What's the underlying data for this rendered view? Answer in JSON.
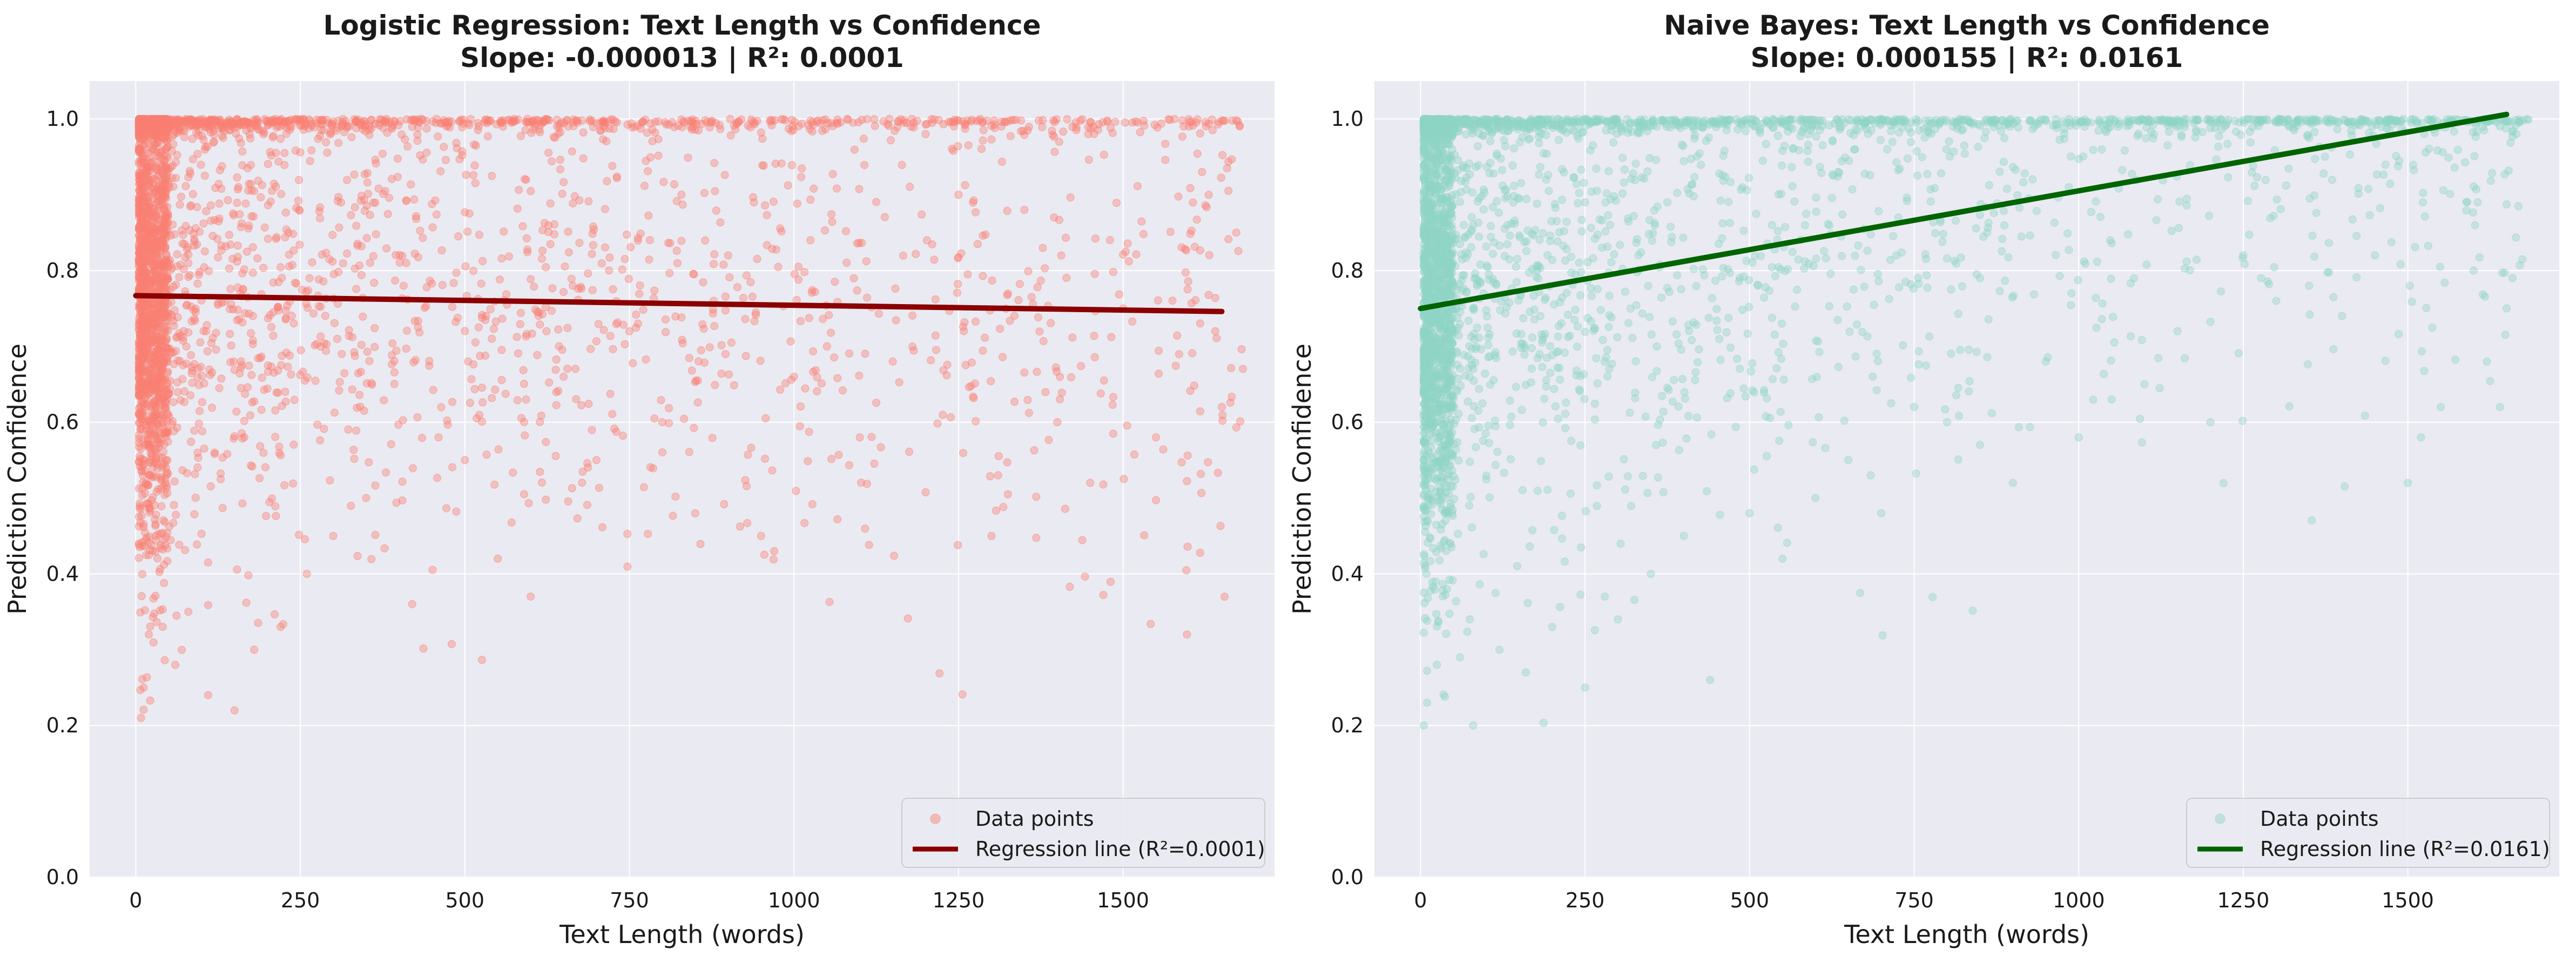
{
  "chart_data": [
    {
      "type": "scatter",
      "title": "Logistic Regression: Text Length vs Confidence",
      "subtitle": "Slope: -0.000013 | R²: 0.0001",
      "xlabel": "Text Length (words)",
      "ylabel": "Prediction Confidence",
      "xlim": [
        -70,
        1730
      ],
      "ylim": [
        0,
        1.05
      ],
      "xticks": [
        0,
        250,
        500,
        750,
        1000,
        1250,
        1500
      ],
      "xtick_labels": [
        "0",
        "250",
        "500",
        "750",
        "1000",
        "1250",
        "1500"
      ],
      "yticks": [
        0,
        0.2,
        0.4,
        0.6,
        0.8,
        1.0
      ],
      "ytick_labels": [
        "0.0",
        "0.2",
        "0.4",
        "0.6",
        "0.8",
        "1.0"
      ],
      "grid": true,
      "legend_position": "lower-right",
      "series": [
        {
          "name": "Data points",
          "kind": "scatter",
          "color": "#fa8072",
          "points_sample": [
            [
              8,
              0.21
            ],
            [
              12,
              0.25
            ],
            [
              20,
              0.32
            ],
            [
              30,
              0.45
            ],
            [
              45,
              0.52
            ],
            [
              60,
              0.28
            ],
            [
              80,
              0.35
            ],
            [
              110,
              0.24
            ],
            [
              150,
              0.22
            ],
            [
              180,
              0.3
            ],
            [
              220,
              0.33
            ],
            [
              260,
              0.4
            ],
            [
              300,
              0.45
            ],
            [
              350,
              0.5
            ],
            [
              420,
              0.36
            ],
            [
              460,
              0.58
            ],
            [
              500,
              0.55
            ],
            [
              550,
              0.42
            ],
            [
              600,
              0.37
            ],
            [
              650,
              0.66
            ],
            [
              700,
              0.55
            ],
            [
              750,
              0.72
            ],
            [
              800,
              0.6
            ],
            [
              850,
              0.48
            ],
            [
              900,
              0.82
            ],
            [
              950,
              0.45
            ],
            [
              970,
              0.43
            ],
            [
              1000,
              0.66
            ],
            [
              1050,
              0.7
            ],
            [
              1100,
              0.58
            ],
            [
              1150,
              0.68
            ],
            [
              1200,
              0.98
            ],
            [
              1250,
              0.9
            ],
            [
              1300,
              0.45
            ],
            [
              1310,
              0.53
            ],
            [
              1350,
              0.88
            ],
            [
              1400,
              0.6
            ],
            [
              1450,
              0.52
            ],
            [
              1500,
              0.75
            ],
            [
              1550,
              0.58
            ],
            [
              1600,
              0.99
            ],
            [
              1620,
              0.93
            ],
            [
              1640,
              0.72
            ],
            [
              1650,
              0.62
            ]
          ],
          "y_max": 1.0
        },
        {
          "name": "Regression line (R²=0.0001)",
          "kind": "line",
          "color": "#8b0000",
          "x": [
            0,
            1650
          ],
          "y": [
            0.767,
            0.746
          ]
        }
      ]
    },
    {
      "type": "scatter",
      "title": "Naive Bayes: Text Length vs Confidence",
      "subtitle": "Slope: 0.000155 | R²: 0.0161",
      "xlabel": "Text Length (words)",
      "ylabel": "Prediction Confidence",
      "xlim": [
        -70,
        1730
      ],
      "ylim": [
        0,
        1.05
      ],
      "xticks": [
        0,
        250,
        500,
        750,
        1000,
        1250,
        1500
      ],
      "xtick_labels": [
        "0",
        "250",
        "500",
        "750",
        "1000",
        "1250",
        "1500"
      ],
      "yticks": [
        0,
        0.2,
        0.4,
        0.6,
        0.8,
        1.0
      ],
      "ytick_labels": [
        "0.0",
        "0.2",
        "0.4",
        "0.6",
        "0.8",
        "1.0"
      ],
      "grid": true,
      "legend_position": "lower-right",
      "series": [
        {
          "name": "Data points",
          "kind": "scatter",
          "color": "#8fd5c6",
          "points_sample": [
            [
              5,
              0.2
            ],
            [
              10,
              0.23
            ],
            [
              25,
              0.28
            ],
            [
              40,
              0.38
            ],
            [
              60,
              0.29
            ],
            [
              80,
              0.2
            ],
            [
              120,
              0.3
            ],
            [
              160,
              0.27
            ],
            [
              200,
              0.33
            ],
            [
              250,
              0.25
            ],
            [
              280,
              0.37
            ],
            [
              300,
              0.34
            ],
            [
              350,
              0.4
            ],
            [
              400,
              0.45
            ],
            [
              440,
              0.26
            ],
            [
              500,
              0.48
            ],
            [
              550,
              0.42
            ],
            [
              600,
              0.5
            ],
            [
              650,
              0.55
            ],
            [
              700,
              0.48
            ],
            [
              750,
              0.62
            ],
            [
              800,
              0.6
            ],
            [
              850,
              0.57
            ],
            [
              900,
              0.52
            ],
            [
              950,
              0.68
            ],
            [
              1000,
              0.58
            ],
            [
              1050,
              0.63
            ],
            [
              1100,
              0.65
            ],
            [
              1150,
              0.72
            ],
            [
              1200,
              0.6
            ],
            [
              1250,
              0.82
            ],
            [
              1300,
              0.76
            ],
            [
              1350,
              0.78
            ],
            [
              1400,
              0.74
            ],
            [
              1450,
              0.82
            ],
            [
              1500,
              0.52
            ],
            [
              1520,
              0.58
            ],
            [
              1550,
              0.62
            ],
            [
              1600,
              0.8
            ],
            [
              1620,
              0.68
            ],
            [
              1640,
              0.62
            ],
            [
              1650,
              0.75
            ]
          ],
          "y_max": 1.0
        },
        {
          "name": "Regression line (R²=0.0161)",
          "kind": "line",
          "color": "#006400",
          "x": [
            0,
            1650
          ],
          "y": [
            0.75,
            1.006
          ]
        }
      ]
    }
  ],
  "colors": {
    "plot_background": "#eaeaf2",
    "grid": "#ffffff",
    "text": "#1a1a1a"
  }
}
